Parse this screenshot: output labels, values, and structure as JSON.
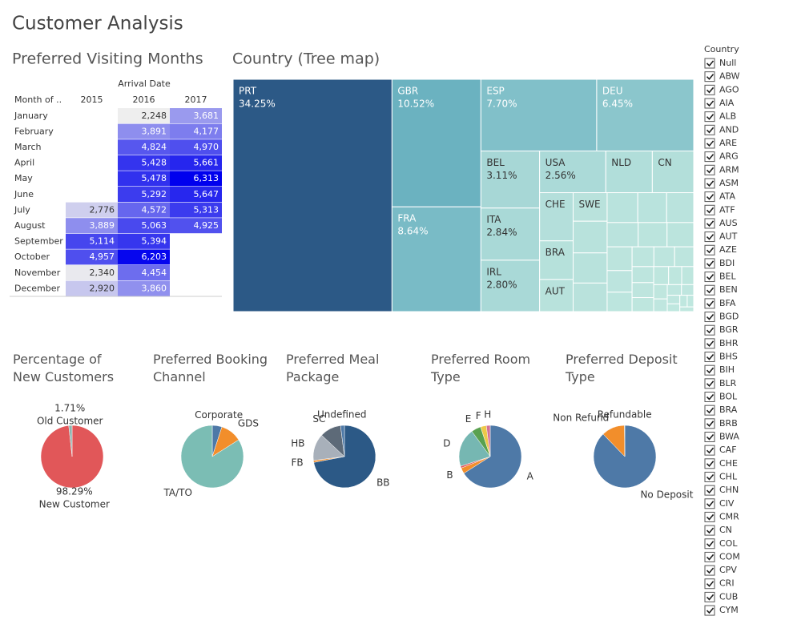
{
  "title": "Customer Analysis",
  "chart_data": [
    {
      "type": "heatmap",
      "title": "Preferred Visiting Months",
      "column_header": "Arrival Date",
      "row_header": "Month of ..",
      "columns": [
        "2015",
        "2016",
        "2017"
      ],
      "color_range": [
        "#eeeeee",
        "#0000ee"
      ],
      "rows": [
        {
          "label": "January",
          "values": [
            null,
            2248,
            3681
          ],
          "value_labels": [
            null,
            "2,248",
            "3,681"
          ]
        },
        {
          "label": "February",
          "values": [
            null,
            3891,
            4177
          ],
          "value_labels": [
            null,
            "3,891",
            "4,177"
          ]
        },
        {
          "label": "March",
          "values": [
            null,
            4824,
            4970
          ],
          "value_labels": [
            null,
            "4,824",
            "4,970"
          ]
        },
        {
          "label": "April",
          "values": [
            null,
            5428,
            5661
          ],
          "value_labels": [
            null,
            "5,428",
            "5,661"
          ]
        },
        {
          "label": "May",
          "values": [
            null,
            5478,
            6313
          ],
          "value_labels": [
            null,
            "5,478",
            "6,313"
          ]
        },
        {
          "label": "June",
          "values": [
            null,
            5292,
            5647
          ],
          "value_labels": [
            null,
            "5,292",
            "5,647"
          ]
        },
        {
          "label": "July",
          "values": [
            2776,
            4572,
            5313
          ],
          "value_labels": [
            "2,776",
            "4,572",
            "5,313"
          ]
        },
        {
          "label": "August",
          "values": [
            3889,
            5063,
            4925
          ],
          "value_labels": [
            "3,889",
            "5,063",
            "4,925"
          ]
        },
        {
          "label": "September",
          "values": [
            5114,
            5394,
            null
          ],
          "value_labels": [
            "5,114",
            "5,394",
            null
          ]
        },
        {
          "label": "October",
          "values": [
            4957,
            6203,
            null
          ],
          "value_labels": [
            "4,957",
            "6,203",
            null
          ]
        },
        {
          "label": "November",
          "values": [
            2340,
            4454,
            null
          ],
          "value_labels": [
            "2,340",
            "4,454",
            null
          ]
        },
        {
          "label": "December",
          "values": [
            2920,
            3860,
            null
          ],
          "value_labels": [
            "2,920",
            "3,860",
            null
          ]
        }
      ]
    },
    {
      "type": "treemap",
      "title": "Country (Tree map)",
      "color_range": [
        "#c0e7df",
        "#6cb3c1",
        "#2c5986"
      ],
      "items": [
        {
          "name": "PRT",
          "value": 34.25,
          "value_label": "34.25%"
        },
        {
          "name": "GBR",
          "value": 10.52,
          "value_label": "10.52%"
        },
        {
          "name": "FRA",
          "value": 8.64,
          "value_label": "8.64%"
        },
        {
          "name": "ESP",
          "value": 7.7,
          "value_label": "7.70%"
        },
        {
          "name": "DEU",
          "value": 6.45,
          "value_label": "6.45%"
        },
        {
          "name": "BEL",
          "value": 3.11,
          "value_label": "3.11%"
        },
        {
          "name": "ITA",
          "value": 2.84,
          "value_label": "2.84%"
        },
        {
          "name": "IRL",
          "value": 2.8,
          "value_label": "2.80%"
        },
        {
          "name": "USA",
          "value": 2.56,
          "value_label": "2.56%"
        },
        {
          "name": "NLD",
          "value": 1.8
        },
        {
          "name": "CN",
          "value": 1.6
        },
        {
          "name": "CHE",
          "value": 1.5
        },
        {
          "name": "BRA",
          "value": 1.2
        },
        {
          "name": "AUT",
          "value": 1.0
        },
        {
          "name": "SWE",
          "value": 0.9
        },
        {
          "name": null,
          "value": 1.0
        },
        {
          "name": null,
          "value": 0.95
        },
        {
          "name": null,
          "value": 0.9
        },
        {
          "name": null,
          "value": 0.85
        },
        {
          "name": null,
          "value": 0.8
        },
        {
          "name": null,
          "value": 0.75
        },
        {
          "name": null,
          "value": 0.7
        },
        {
          "name": null,
          "value": 0.65
        },
        {
          "name": null,
          "value": 0.6
        },
        {
          "name": null,
          "value": 0.55
        },
        {
          "name": null,
          "value": 0.5
        },
        {
          "name": null,
          "value": 0.45
        },
        {
          "name": null,
          "value": 0.4
        },
        {
          "name": null,
          "value": 0.38
        },
        {
          "name": null,
          "value": 0.35
        },
        {
          "name": null,
          "value": 0.32
        },
        {
          "name": null,
          "value": 0.3
        },
        {
          "name": null,
          "value": 0.28
        },
        {
          "name": null,
          "value": 0.25
        },
        {
          "name": null,
          "value": 0.22
        },
        {
          "name": null,
          "value": 0.2
        },
        {
          "name": null,
          "value": 0.18
        },
        {
          "name": null,
          "value": 0.16
        },
        {
          "name": null,
          "value": 0.14
        },
        {
          "name": null,
          "value": 0.12
        },
        {
          "name": null,
          "value": 0.1
        },
        {
          "name": null,
          "value": 0.09
        },
        {
          "name": null,
          "value": 0.08
        },
        {
          "name": null,
          "value": 0.07
        },
        {
          "name": null,
          "value": 0.06
        }
      ]
    },
    {
      "type": "pie",
      "title": "Percentage of New Customers",
      "slices": [
        {
          "name": "New Customer",
          "value": 98.29,
          "value_label": "98.29%",
          "color": "#e15759"
        },
        {
          "name": "Old Customer",
          "value": 1.71,
          "value_label": "1.71%",
          "color": "#8fb5b0"
        }
      ]
    },
    {
      "type": "pie",
      "title": "Preferred Booking Channel",
      "slices": [
        {
          "name": "Corporate",
          "value": 5,
          "color": "#4e79a7"
        },
        {
          "name": "GDS",
          "value": 11,
          "color": "#f28e2b"
        },
        {
          "name": "TA/TO",
          "value": 84,
          "color": "#7bbdb4"
        }
      ]
    },
    {
      "type": "pie",
      "title": "Preferred Meal Package",
      "slices": [
        {
          "name": "BB",
          "value": 72,
          "color": "#2c5986"
        },
        {
          "name": "FB",
          "value": 1,
          "color": "#f28e2b"
        },
        {
          "name": "HB",
          "value": 14,
          "color": "#a8b0ba"
        },
        {
          "name": "SC",
          "value": 11,
          "color": "#5d6a78"
        },
        {
          "name": "Undefined",
          "value": 2,
          "color": "#4e79a7"
        }
      ]
    },
    {
      "type": "pie",
      "title": "Preferred Room Type",
      "slices": [
        {
          "name": "A",
          "value": 66,
          "color": "#4e79a7"
        },
        {
          "name": "B",
          "value": 3,
          "color": "#f28e2b"
        },
        {
          "name": null,
          "value": 1,
          "color": "#e15759"
        },
        {
          "name": "D",
          "value": 20,
          "color": "#76b7b2"
        },
        {
          "name": "E",
          "value": 5,
          "color": "#59a14f"
        },
        {
          "name": "F",
          "value": 3,
          "color": "#edc948"
        },
        {
          "name": "H",
          "value": 2,
          "color": "#d37295"
        }
      ]
    },
    {
      "type": "pie",
      "title": "Preferred Deposit Type",
      "slices": [
        {
          "name": "No Deposit",
          "value": 87.8,
          "color": "#4e79a7"
        },
        {
          "name": "Non Refund",
          "value": 12,
          "color": "#f28e2b"
        },
        {
          "name": "Refundable",
          "value": 0.2,
          "color": "#76b7b2"
        }
      ]
    }
  ],
  "filter": {
    "title": "Country",
    "options": [
      "Null",
      "ABW",
      "AGO",
      "AIA",
      "ALB",
      "AND",
      "ARE",
      "ARG",
      "ARM",
      "ASM",
      "ATA",
      "ATF",
      "AUS",
      "AUT",
      "AZE",
      "BDI",
      "BEL",
      "BEN",
      "BFA",
      "BGD",
      "BGR",
      "BHR",
      "BHS",
      "BIH",
      "BLR",
      "BOL",
      "BRA",
      "BRB",
      "BWA",
      "CAF",
      "CHE",
      "CHL",
      "CHN",
      "CIV",
      "CMR",
      "CN",
      "COL",
      "COM",
      "CPV",
      "CRI",
      "CUB",
      "CYM"
    ]
  }
}
